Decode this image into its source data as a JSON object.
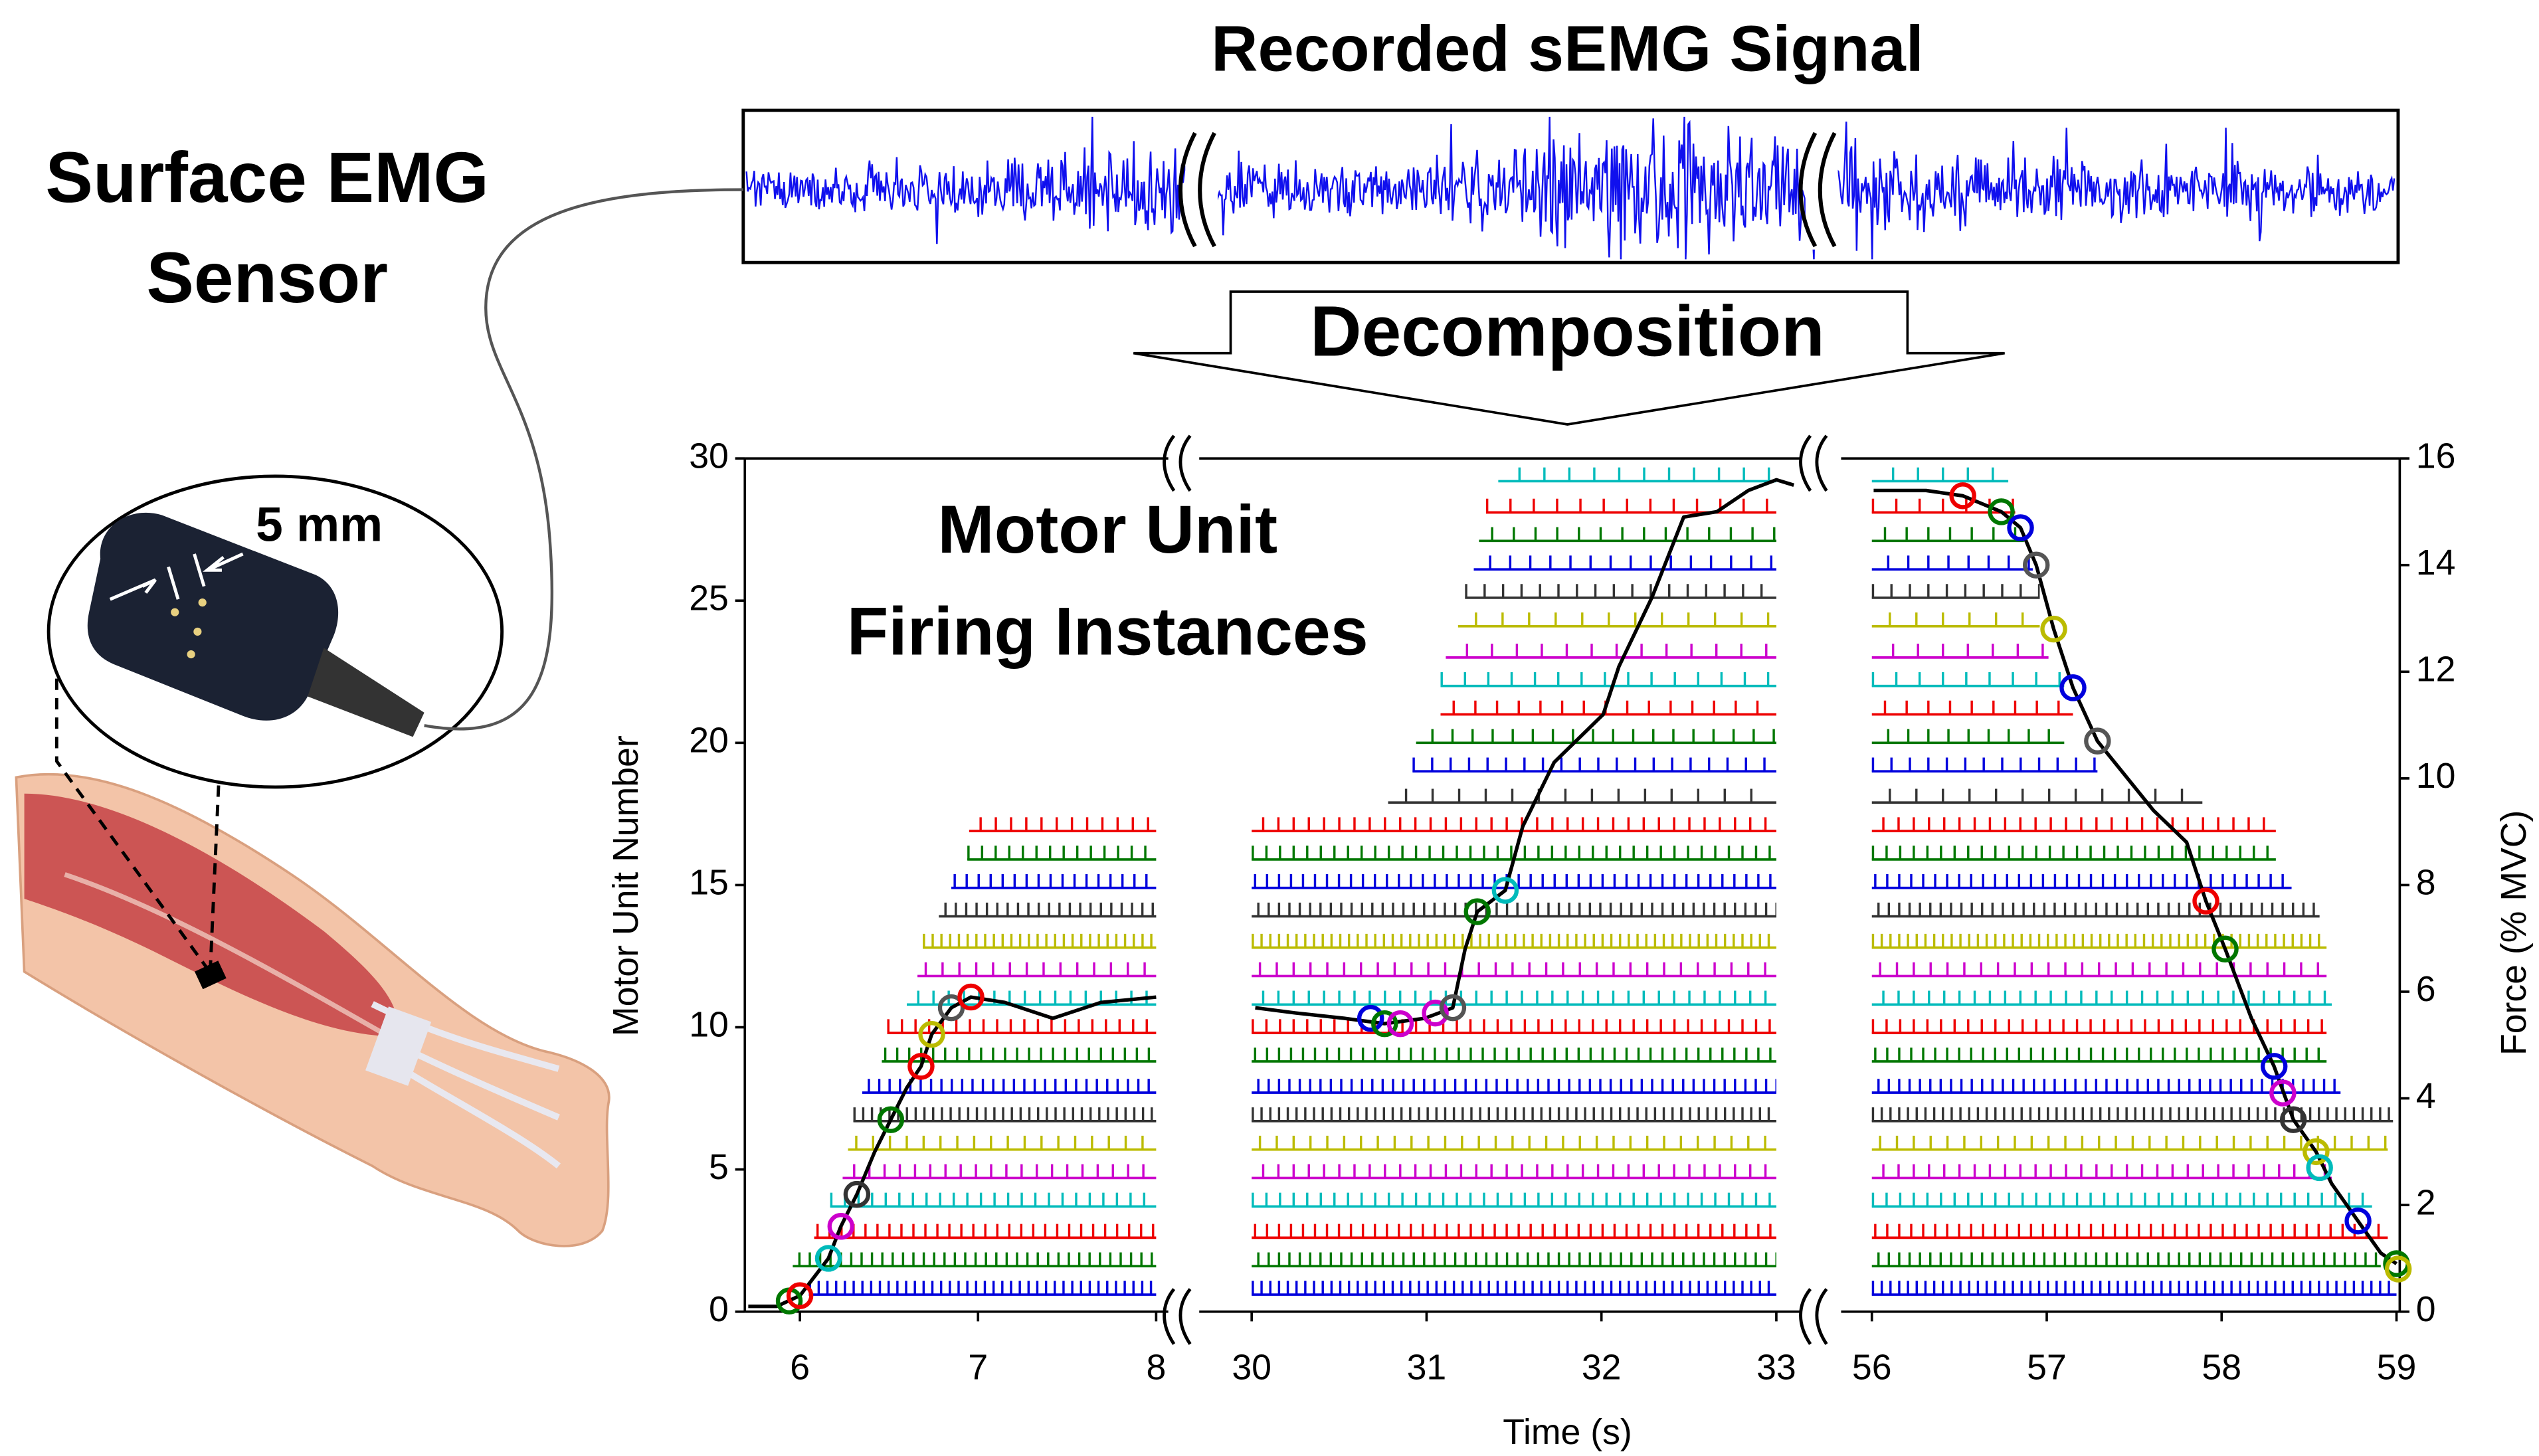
{
  "figure": {
    "title": "Recorded sEMG Signal",
    "arrow_label": "Decomposition",
    "sensor_label": [
      "Surface EMG",
      "Sensor"
    ],
    "scale_label": "5 mm"
  },
  "chart_data": {
    "type": "raster",
    "annotation": [
      "Motor Unit",
      "Firing Instances"
    ],
    "xlabel": "Time (s)",
    "ylabel": "Motor Unit Number",
    "y2label": "Force (% MVC)",
    "ylim": [
      0,
      30
    ],
    "yticks": [
      0,
      5,
      10,
      15,
      20,
      25,
      30
    ],
    "y2lim": [
      0,
      16
    ],
    "y2ticks": [
      0,
      2,
      4,
      6,
      8,
      10,
      12,
      14,
      16
    ],
    "segments": [
      {
        "xlim": [
          5.7,
          8.05
        ],
        "xticks": [
          6,
          7,
          8
        ]
      },
      {
        "xlim": [
          29.7,
          33.1
        ],
        "xticks": [
          30,
          31,
          32,
          33
        ]
      },
      {
        "xlim": [
          55.85,
          59.0
        ],
        "xticks": [
          56,
          57,
          58,
          59
        ]
      }
    ],
    "units": [
      {
        "y": 0.6,
        "color": "#0000dd",
        "spans": [
          [
            6.05,
            8.0
          ],
          [
            30.0,
            33.0
          ],
          [
            56.0,
            59.0
          ]
        ]
      },
      {
        "y": 1.6,
        "color": "#007700",
        "spans": [
          [
            5.96,
            8.0
          ],
          [
            30.0,
            33.0
          ],
          [
            56.0,
            58.91
          ]
        ]
      },
      {
        "y": 2.6,
        "color": "#ee0000",
        "spans": [
          [
            6.08,
            8.0
          ],
          [
            30.0,
            33.0
          ],
          [
            56.0,
            58.95
          ]
        ]
      },
      {
        "y": 3.7,
        "color": "#00bbbb",
        "spans": [
          [
            6.17,
            8.0
          ],
          [
            30.0,
            33.0
          ],
          [
            56.0,
            58.86
          ]
        ]
      },
      {
        "y": 4.7,
        "color": "#cc00cc",
        "spans": [
          [
            6.24,
            8.0
          ],
          [
            30.0,
            33.0
          ],
          [
            56.0,
            58.63
          ]
        ]
      },
      {
        "y": 5.7,
        "color": "#bbbb00",
        "spans": [
          [
            6.27,
            8.0
          ],
          [
            30.0,
            33.0
          ],
          [
            56.0,
            58.95
          ]
        ]
      },
      {
        "y": 6.7,
        "color": "#333333",
        "spans": [
          [
            6.3,
            8.0
          ],
          [
            30.0,
            33.0
          ],
          [
            56.0,
            58.98
          ]
        ]
      },
      {
        "y": 7.7,
        "color": "#0000dd",
        "spans": [
          [
            6.35,
            8.0
          ],
          [
            30.0,
            33.0
          ],
          [
            56.0,
            58.68
          ]
        ]
      },
      {
        "y": 8.8,
        "color": "#007700",
        "spans": [
          [
            6.46,
            8.0
          ],
          [
            30.0,
            33.0
          ],
          [
            56.0,
            58.6
          ]
        ]
      },
      {
        "y": 9.8,
        "color": "#ee0000",
        "spans": [
          [
            6.49,
            8.0
          ],
          [
            30.0,
            33.0
          ],
          [
            56.0,
            58.6
          ]
        ]
      },
      {
        "y": 10.8,
        "color": "#00bbbb",
        "spans": [
          [
            6.6,
            8.0
          ],
          [
            30.0,
            33.0
          ],
          [
            56.0,
            58.63
          ]
        ]
      },
      {
        "y": 11.8,
        "color": "#cc00cc",
        "spans": [
          [
            6.66,
            8.0
          ],
          [
            30.0,
            33.0
          ],
          [
            56.0,
            58.6
          ]
        ]
      },
      {
        "y": 12.8,
        "color": "#bbbb00",
        "spans": [
          [
            6.69,
            8.0
          ],
          [
            30.0,
            33.0
          ],
          [
            56.0,
            58.6
          ]
        ]
      },
      {
        "y": 13.9,
        "color": "#333333",
        "spans": [
          [
            6.78,
            8.0
          ],
          [
            30.0,
            33.0
          ],
          [
            56.0,
            58.56
          ]
        ]
      },
      {
        "y": 14.9,
        "color": "#0000dd",
        "spans": [
          [
            6.85,
            8.0
          ],
          [
            30.0,
            33.0
          ],
          [
            56.0,
            58.4
          ]
        ]
      },
      {
        "y": 15.9,
        "color": "#007700",
        "spans": [
          [
            6.94,
            8.0
          ],
          [
            30.0,
            33.0
          ],
          [
            56.0,
            58.31
          ]
        ]
      },
      {
        "y": 16.9,
        "color": "#ee0000",
        "spans": [
          [
            6.95,
            8.0
          ],
          [
            30.0,
            33.0
          ],
          [
            56.0,
            58.31
          ]
        ]
      },
      {
        "y": 17.9,
        "color": "#333333",
        "spans": [
          [
            30.78,
            33.0
          ],
          [
            56.0,
            57.89
          ]
        ]
      },
      {
        "y": 19.0,
        "color": "#0000dd",
        "spans": [
          [
            30.92,
            33.0
          ],
          [
            56.0,
            57.29
          ]
        ]
      },
      {
        "y": 20.0,
        "color": "#007700",
        "spans": [
          [
            30.94,
            33.0
          ],
          [
            56.0,
            57.1
          ]
        ]
      },
      {
        "y": 21.0,
        "color": "#ee0000",
        "spans": [
          [
            31.08,
            33.0
          ],
          [
            56.0,
            57.15
          ]
        ]
      },
      {
        "y": 22.0,
        "color": "#00bbbb",
        "spans": [
          [
            31.08,
            33.0
          ],
          [
            56.0,
            57.1
          ]
        ]
      },
      {
        "y": 23.0,
        "color": "#cc00cc",
        "spans": [
          [
            31.11,
            33.0
          ],
          [
            56.0,
            57.01
          ]
        ]
      },
      {
        "y": 24.1,
        "color": "#bbbb00",
        "spans": [
          [
            31.18,
            33.0
          ],
          [
            56.0,
            56.96
          ]
        ]
      },
      {
        "y": 25.1,
        "color": "#333333",
        "spans": [
          [
            31.22,
            33.0
          ],
          [
            56.0,
            56.96
          ]
        ]
      },
      {
        "y": 26.1,
        "color": "#0000dd",
        "spans": [
          [
            31.27,
            33.0
          ],
          [
            56.0,
            56.92
          ]
        ]
      },
      {
        "y": 27.1,
        "color": "#007700",
        "spans": [
          [
            31.3,
            33.0
          ],
          [
            56.0,
            56.87
          ]
        ]
      },
      {
        "y": 28.1,
        "color": "#ee0000",
        "spans": [
          [
            31.34,
            33.0
          ],
          [
            56.0,
            56.82
          ]
        ]
      },
      {
        "y": 29.2,
        "color": "#00bbbb",
        "spans": [
          [
            31.41,
            33.0
          ],
          [
            56.0,
            56.78
          ]
        ]
      }
    ],
    "force": {
      "color": "#000000",
      "axis": "y2",
      "x": [
        5.71,
        5.87,
        6.0,
        6.16,
        6.23,
        6.32,
        6.42,
        6.51,
        6.6,
        6.68,
        6.74,
        6.85,
        6.96,
        7.15,
        7.42,
        7.69,
        8.0,
        null,
        30.02,
        30.25,
        30.53,
        30.76,
        30.99,
        31.15,
        31.22,
        31.29,
        31.45,
        31.55,
        31.73,
        32.01,
        32.1,
        32.29,
        32.47,
        32.66,
        32.84,
        33.0,
        33.1,
        null,
        56.01,
        56.31,
        56.52,
        56.74,
        56.85,
        56.94,
        57.04,
        57.15,
        57.29,
        57.61,
        57.8,
        57.91,
        58.02,
        58.17,
        58.3,
        58.41,
        58.54,
        58.63,
        58.78,
        58.91,
        59.0
      ],
      "y": [
        0.1,
        0.1,
        0.3,
        1.0,
        1.6,
        2.2,
        3.0,
        3.6,
        4.2,
        4.6,
        5.2,
        5.7,
        5.9,
        5.8,
        5.5,
        5.8,
        5.9,
        null,
        5.7,
        5.6,
        5.5,
        5.4,
        5.5,
        5.7,
        6.8,
        7.5,
        7.9,
        9.1,
        10.3,
        11.2,
        12.1,
        13.4,
        14.9,
        15.0,
        15.4,
        15.6,
        15.5,
        null,
        15.4,
        15.4,
        15.3,
        15.0,
        14.7,
        14.0,
        12.8,
        11.7,
        10.7,
        9.4,
        8.8,
        7.7,
        6.8,
        5.5,
        4.6,
        3.6,
        3.0,
        2.4,
        1.7,
        1.1,
        0.9
      ]
    },
    "markers": {
      "x": [
        5.94,
        6.0,
        6.16,
        6.23,
        6.32,
        6.51,
        6.68,
        6.74,
        6.85,
        6.96,
        30.68,
        30.76,
        30.85,
        31.05,
        31.15,
        31.29,
        31.45,
        56.52,
        56.74,
        56.85,
        56.94,
        57.04,
        57.15,
        57.29,
        57.91,
        58.02,
        58.3,
        58.35,
        58.41,
        58.54,
        58.56,
        58.78,
        59.0,
        59.01
      ],
      "y": [
        0.2,
        0.3,
        1.0,
        1.6,
        2.2,
        3.6,
        4.6,
        5.2,
        5.7,
        5.9,
        5.5,
        5.4,
        5.4,
        5.6,
        5.7,
        7.5,
        7.9,
        15.3,
        15.0,
        14.7,
        14.0,
        12.8,
        11.7,
        10.7,
        7.7,
        6.8,
        4.6,
        4.1,
        3.6,
        3.0,
        2.7,
        1.7,
        0.9,
        0.8
      ],
      "colors": [
        "#007700",
        "#ee0000",
        "#00bbbb",
        "#cc00cc",
        "#333333",
        "#007700",
        "#ee0000",
        "#bbbb00",
        "#555555",
        "#ee0000",
        "#0000dd",
        "#007700",
        "#cc00cc",
        "#cc00cc",
        "#555555",
        "#007700",
        "#00bbbb",
        "#ee0000",
        "#007700",
        "#0000dd",
        "#555555",
        "#bbbb00",
        "#0000dd",
        "#555555",
        "#ee0000",
        "#007700",
        "#0000dd",
        "#cc00cc",
        "#333333",
        "#bbbb00",
        "#00bbbb",
        "#0000dd",
        "#007700",
        "#bbbb00"
      ]
    }
  }
}
